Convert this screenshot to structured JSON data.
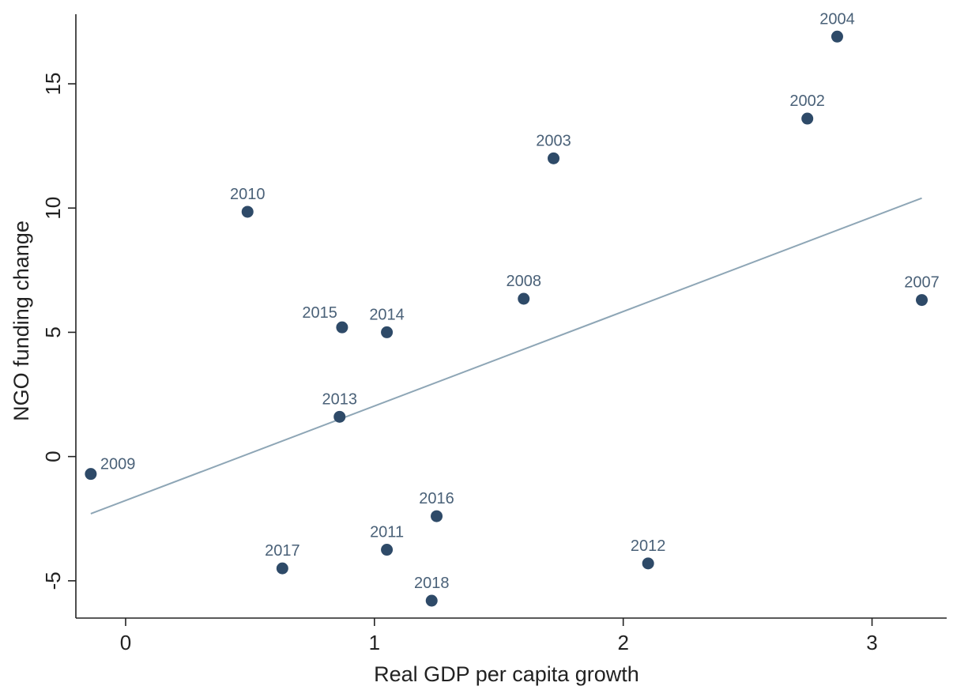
{
  "chart_data": {
    "type": "scatter",
    "xlabel": "Real GDP per capita growth",
    "ylabel": "NGO funding change",
    "xlim": [
      -0.2,
      3.3
    ],
    "ylim": [
      -6.5,
      17.8
    ],
    "xticks": [
      0,
      1,
      2,
      3
    ],
    "yticks": [
      -5,
      0,
      5,
      10,
      15
    ],
    "grid": false,
    "colors": {
      "marker": "#2e4a68",
      "label": "#4a6178",
      "fit_line": "#8ea6b6"
    },
    "points": [
      {
        "label": "2002",
        "x": 2.74,
        "y": 13.6
      },
      {
        "label": "2003",
        "x": 1.72,
        "y": 12.0
      },
      {
        "label": "2004",
        "x": 2.86,
        "y": 16.9
      },
      {
        "label": "2007",
        "x": 3.2,
        "y": 6.3
      },
      {
        "label": "2008",
        "x": 1.6,
        "y": 6.35
      },
      {
        "label": "2009",
        "x": -0.14,
        "y": -0.7
      },
      {
        "label": "2010",
        "x": 0.49,
        "y": 9.85
      },
      {
        "label": "2011",
        "x": 1.05,
        "y": -3.75
      },
      {
        "label": "2012",
        "x": 2.1,
        "y": -4.3
      },
      {
        "label": "2013",
        "x": 0.86,
        "y": 1.6
      },
      {
        "label": "2014",
        "x": 1.05,
        "y": 5.0
      },
      {
        "label": "2015",
        "x": 0.87,
        "y": 5.2
      },
      {
        "label": "2016",
        "x": 1.25,
        "y": -2.4
      },
      {
        "label": "2017",
        "x": 0.63,
        "y": -4.5
      },
      {
        "label": "2018",
        "x": 1.23,
        "y": -5.8
      }
    ],
    "fit_line": {
      "x": [
        -0.14,
        3.2
      ],
      "y": [
        -2.3,
        10.4
      ]
    }
  }
}
